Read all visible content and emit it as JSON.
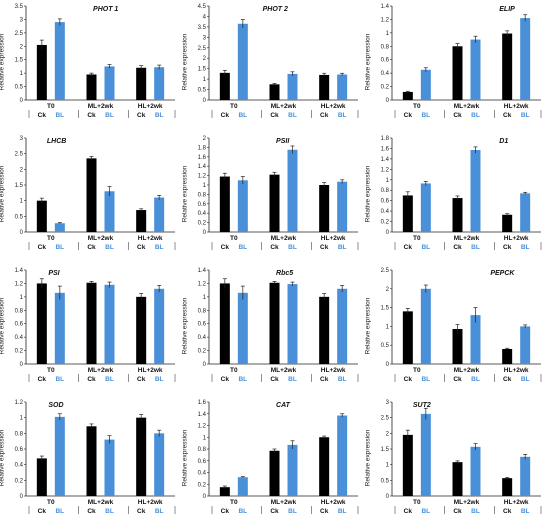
{
  "colors": {
    "ck": "#000000",
    "bl": "#4a90d9",
    "axis": "#222222"
  },
  "chart_data": [
    {
      "type": "bar",
      "title": "PHOT 1",
      "ylabel": "Relative expression",
      "ylim": [
        0,
        3.5
      ],
      "yticks": [
        "0",
        "0.5",
        "1",
        "1.5",
        "2",
        "2.5",
        "3",
        "3.5"
      ],
      "ytick_values": [
        0,
        0.5,
        1,
        1.5,
        2,
        2.5,
        3,
        3.5
      ],
      "groups": [
        "T0",
        "ML+2wk",
        "HL+2wk"
      ],
      "series": [
        {
          "name": "Ck",
          "values": [
            2.05,
            0.95,
            1.2
          ]
        },
        {
          "name": "BL",
          "values": [
            2.9,
            1.25,
            1.22
          ]
        }
      ],
      "errors": [
        [
          0.18,
          0.05,
          0.08
        ],
        [
          0.12,
          0.07,
          0.08
        ]
      ]
    },
    {
      "type": "bar",
      "title": "PHOT 2",
      "ylabel": "Relative expression",
      "ylim": [
        0,
        4.5
      ],
      "yticks": [
        "0",
        "0.5",
        "1",
        "1.5",
        "2",
        "2.5",
        "3",
        "3.5",
        "4",
        "4.5"
      ],
      "ytick_values": [
        0,
        0.5,
        1,
        1.5,
        2,
        2.5,
        3,
        3.5,
        4,
        4.5
      ],
      "groups": [
        "T0",
        "ML+2wk",
        "HL+2wk"
      ],
      "series": [
        {
          "name": "Ck",
          "values": [
            1.3,
            0.75,
            1.2
          ]
        },
        {
          "name": "BL",
          "values": [
            3.65,
            1.25,
            1.22
          ]
        }
      ],
      "errors": [
        [
          0.12,
          0.04,
          0.08
        ],
        [
          0.2,
          0.1,
          0.06
        ]
      ]
    },
    {
      "type": "bar",
      "title": "ELIP",
      "ylabel": "Relative expression",
      "ylim": [
        0,
        1.4
      ],
      "yticks": [
        "0",
        "0.2",
        "0.4",
        "0.6",
        "0.8",
        "1",
        "1.2",
        "1.4"
      ],
      "ytick_values": [
        0,
        0.2,
        0.4,
        0.6,
        0.8,
        1,
        1.2,
        1.4
      ],
      "groups": [
        "T0",
        "ML+2wk",
        "HL+2wk"
      ],
      "series": [
        {
          "name": "Ck",
          "values": [
            0.12,
            0.8,
            0.99
          ]
        },
        {
          "name": "BL",
          "values": [
            0.45,
            0.9,
            1.22
          ]
        }
      ],
      "errors": [
        [
          0.01,
          0.04,
          0.04
        ],
        [
          0.03,
          0.05,
          0.05
        ]
      ]
    },
    {
      "type": "bar",
      "title": "LHCB",
      "ylabel": "Relative expression",
      "ylim": [
        0,
        3
      ],
      "yticks": [
        "0",
        "0.5",
        "1",
        "1.5",
        "2",
        "2.5",
        "3"
      ],
      "ytick_values": [
        0,
        0.5,
        1,
        1.5,
        2,
        2.5,
        3
      ],
      "groups": [
        "T0",
        "ML+2wk",
        "HL+2wk"
      ],
      "series": [
        {
          "name": "Ck",
          "values": [
            1.0,
            2.35,
            0.7
          ]
        },
        {
          "name": "BL",
          "values": [
            0.28,
            1.3,
            1.1
          ]
        }
      ],
      "errors": [
        [
          0.08,
          0.06,
          0.04
        ],
        [
          0.02,
          0.15,
          0.07
        ]
      ]
    },
    {
      "type": "bar",
      "title": "PSII",
      "ylabel": "Relative expression",
      "ylim": [
        0,
        2
      ],
      "yticks": [
        "0",
        "0.2",
        "0.4",
        "0.6",
        "0.8",
        "1",
        "1.2",
        "1.4",
        "1.6",
        "1.8",
        "2"
      ],
      "ytick_values": [
        0,
        0.2,
        0.4,
        0.6,
        0.8,
        1,
        1.2,
        1.4,
        1.6,
        1.8,
        2
      ],
      "groups": [
        "T0",
        "ML+2wk",
        "HL+2wk"
      ],
      "series": [
        {
          "name": "Ck",
          "values": [
            1.18,
            1.22,
            1.0
          ]
        },
        {
          "name": "BL",
          "values": [
            1.1,
            1.75,
            1.07
          ]
        }
      ],
      "errors": [
        [
          0.07,
          0.05,
          0.05
        ],
        [
          0.08,
          0.08,
          0.04
        ]
      ]
    },
    {
      "type": "bar",
      "title": "D1",
      "ylabel": "Relative expression",
      "ylim": [
        0,
        1.8
      ],
      "yticks": [
        "0",
        "0.2",
        "0.4",
        "0.6",
        "0.8",
        "1",
        "1.2",
        "1.4",
        "1.6",
        "1.8"
      ],
      "ytick_values": [
        0,
        0.2,
        0.4,
        0.6,
        0.8,
        1,
        1.2,
        1.4,
        1.6,
        1.8
      ],
      "groups": [
        "T0",
        "ML+2wk",
        "HL+2wk"
      ],
      "series": [
        {
          "name": "Ck",
          "values": [
            0.7,
            0.65,
            0.33
          ]
        },
        {
          "name": "BL",
          "values": [
            0.93,
            1.57,
            0.74
          ]
        }
      ],
      "errors": [
        [
          0.07,
          0.04,
          0.02
        ],
        [
          0.04,
          0.06,
          0.02
        ]
      ]
    },
    {
      "type": "bar",
      "title": "PSI",
      "ylabel": "Relative expression",
      "ylim": [
        0,
        1.4
      ],
      "yticks": [
        "0",
        "0.2",
        "0.4",
        "0.6",
        "0.8",
        "1",
        "1.2",
        "1.4"
      ],
      "ytick_values": [
        0,
        0.2,
        0.4,
        0.6,
        0.8,
        1,
        1.2,
        1.4
      ],
      "groups": [
        "T0",
        "ML+2wk",
        "HL+2wk"
      ],
      "series": [
        {
          "name": "Ck",
          "values": [
            1.2,
            1.21,
            1.0
          ]
        },
        {
          "name": "BL",
          "values": [
            1.06,
            1.18,
            1.12
          ]
        }
      ],
      "errors": [
        [
          0.07,
          0.02,
          0.05
        ],
        [
          0.1,
          0.04,
          0.05
        ]
      ]
    },
    {
      "type": "bar",
      "title": "Rbc5",
      "ylabel": "Relative expression",
      "ylim": [
        0,
        1.4
      ],
      "yticks": [
        "0",
        "0.2",
        "0.4",
        "0.6",
        "0.8",
        "1",
        "1.2",
        "1.4"
      ],
      "ytick_values": [
        0,
        0.2,
        0.4,
        0.6,
        0.8,
        1,
        1.2,
        1.4
      ],
      "groups": [
        "T0",
        "ML+2wk",
        "HL+2wk"
      ],
      "series": [
        {
          "name": "Ck",
          "values": [
            1.2,
            1.21,
            1.0
          ]
        },
        {
          "name": "BL",
          "values": [
            1.06,
            1.19,
            1.12
          ]
        }
      ],
      "errors": [
        [
          0.07,
          0.02,
          0.05
        ],
        [
          0.1,
          0.03,
          0.05
        ]
      ]
    },
    {
      "type": "bar",
      "title": "PEPCK",
      "ylabel": "Relative expression",
      "ylim": [
        0,
        2.5
      ],
      "yticks": [
        "0",
        "0.5",
        "1",
        "1.5",
        "2",
        "2.5"
      ],
      "ytick_values": [
        0,
        0.5,
        1,
        1.5,
        2,
        2.5
      ],
      "groups": [
        "T0",
        "ML+2wk",
        "HL+2wk"
      ],
      "series": [
        {
          "name": "Ck",
          "values": [
            1.4,
            0.93,
            0.4
          ]
        },
        {
          "name": "BL",
          "values": [
            2.0,
            1.3,
            1.0
          ]
        }
      ],
      "errors": [
        [
          0.08,
          0.12,
          0.02
        ],
        [
          0.1,
          0.2,
          0.04
        ]
      ]
    },
    {
      "type": "bar",
      "title": "SOD",
      "ylabel": "Relative expression",
      "ylim": [
        0,
        1.2
      ],
      "yticks": [
        "0",
        "0.2",
        "0.4",
        "0.6",
        "0.8",
        "1",
        "1.2"
      ],
      "ytick_values": [
        0,
        0.2,
        0.4,
        0.6,
        0.8,
        1,
        1.2
      ],
      "groups": [
        "T0",
        "ML+2wk",
        "HL+2wk"
      ],
      "series": [
        {
          "name": "Ck",
          "values": [
            0.48,
            0.89,
            1.0
          ]
        },
        {
          "name": "BL",
          "values": [
            1.01,
            0.72,
            0.8
          ]
        }
      ],
      "errors": [
        [
          0.03,
          0.03,
          0.04
        ],
        [
          0.04,
          0.05,
          0.04
        ]
      ]
    },
    {
      "type": "bar",
      "title": "CAT",
      "ylabel": "Relative expression",
      "ylim": [
        0,
        1.6
      ],
      "yticks": [
        "0",
        "0.2",
        "0.4",
        "0.6",
        "0.8",
        "1",
        "1.2",
        "1.4",
        "1.6"
      ],
      "ytick_values": [
        0,
        0.2,
        0.4,
        0.6,
        0.8,
        1,
        1.2,
        1.4,
        1.6
      ],
      "groups": [
        "T0",
        "ML+2wk",
        "HL+2wk"
      ],
      "series": [
        {
          "name": "Ck",
          "values": [
            0.15,
            0.77,
            1.0
          ]
        },
        {
          "name": "BL",
          "values": [
            0.32,
            0.87,
            1.37
          ]
        }
      ],
      "errors": [
        [
          0.02,
          0.03,
          0.02
        ],
        [
          0.01,
          0.07,
          0.03
        ]
      ]
    },
    {
      "type": "bar",
      "title": "SUT2",
      "ylabel": "Relative expression",
      "ylim": [
        0,
        3
      ],
      "yticks": [
        "0",
        "0.5",
        "1",
        "1.5",
        "2",
        "2.5",
        "3"
      ],
      "ytick_values": [
        0,
        0.5,
        1,
        1.5,
        2,
        2.5,
        3
      ],
      "groups": [
        "T0",
        "ML+2wk",
        "HL+2wk"
      ],
      "series": [
        {
          "name": "Ck",
          "values": [
            1.95,
            1.08,
            0.57
          ]
        },
        {
          "name": "BL",
          "values": [
            2.62,
            1.57,
            1.25
          ]
        }
      ],
      "errors": [
        [
          0.15,
          0.04,
          0.02
        ],
        [
          0.18,
          0.1,
          0.08
        ]
      ]
    }
  ]
}
